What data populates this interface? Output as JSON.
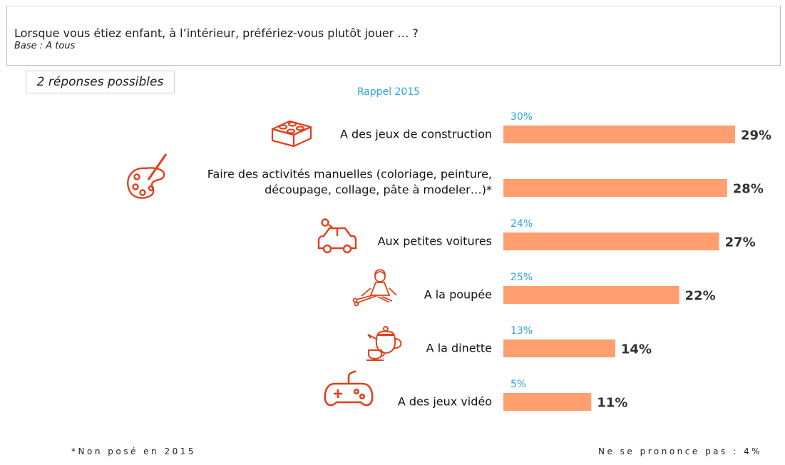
{
  "header": {
    "question": "Lorsque vous étiez enfant, à l’intérieur, préfériez-vous plutôt jouer … ?",
    "base": "Base : A tous"
  },
  "responses_note": "2 réponses possibles",
  "recall_header": "Rappel 2015",
  "colors": {
    "bar": "#ff9e6e",
    "recall": "#2aa5d9",
    "icon": "#e0401c",
    "value": "#333333"
  },
  "chart_data": {
    "type": "bar",
    "orientation": "horizontal",
    "categories": [
      [
        "A des jeux de construction"
      ],
      [
        "Faire des activités manuelles (coloriage, peinture,",
        "découpage, collage, pâte à modeler…)*"
      ],
      [
        "Aux petites voitures"
      ],
      [
        "A la poupée"
      ],
      [
        "A la dinette"
      ],
      [
        "A des jeux vidéo"
      ]
    ],
    "icons": [
      "lego-brick-icon",
      "paint-palette-icon",
      "toy-car-icon",
      "doll-icon",
      "teapot-icon",
      "gamepad-icon"
    ],
    "series": [
      {
        "values": [
          29,
          28,
          27,
          22,
          14,
          11
        ],
        "labels": [
          "29%",
          "28%",
          "27%",
          "22%",
          "14%",
          "11%"
        ]
      },
      {
        "name": "Rappel 2015",
        "values": [
          30,
          null,
          24,
          25,
          13,
          5
        ],
        "labels": [
          "30%",
          "",
          "24%",
          "25%",
          "13%",
          "5%"
        ]
      }
    ],
    "xlim": [
      0,
      29
    ]
  },
  "footer": {
    "note": "*Non posé en 2015",
    "no_answer": "Ne se prononce pas : 4%"
  }
}
